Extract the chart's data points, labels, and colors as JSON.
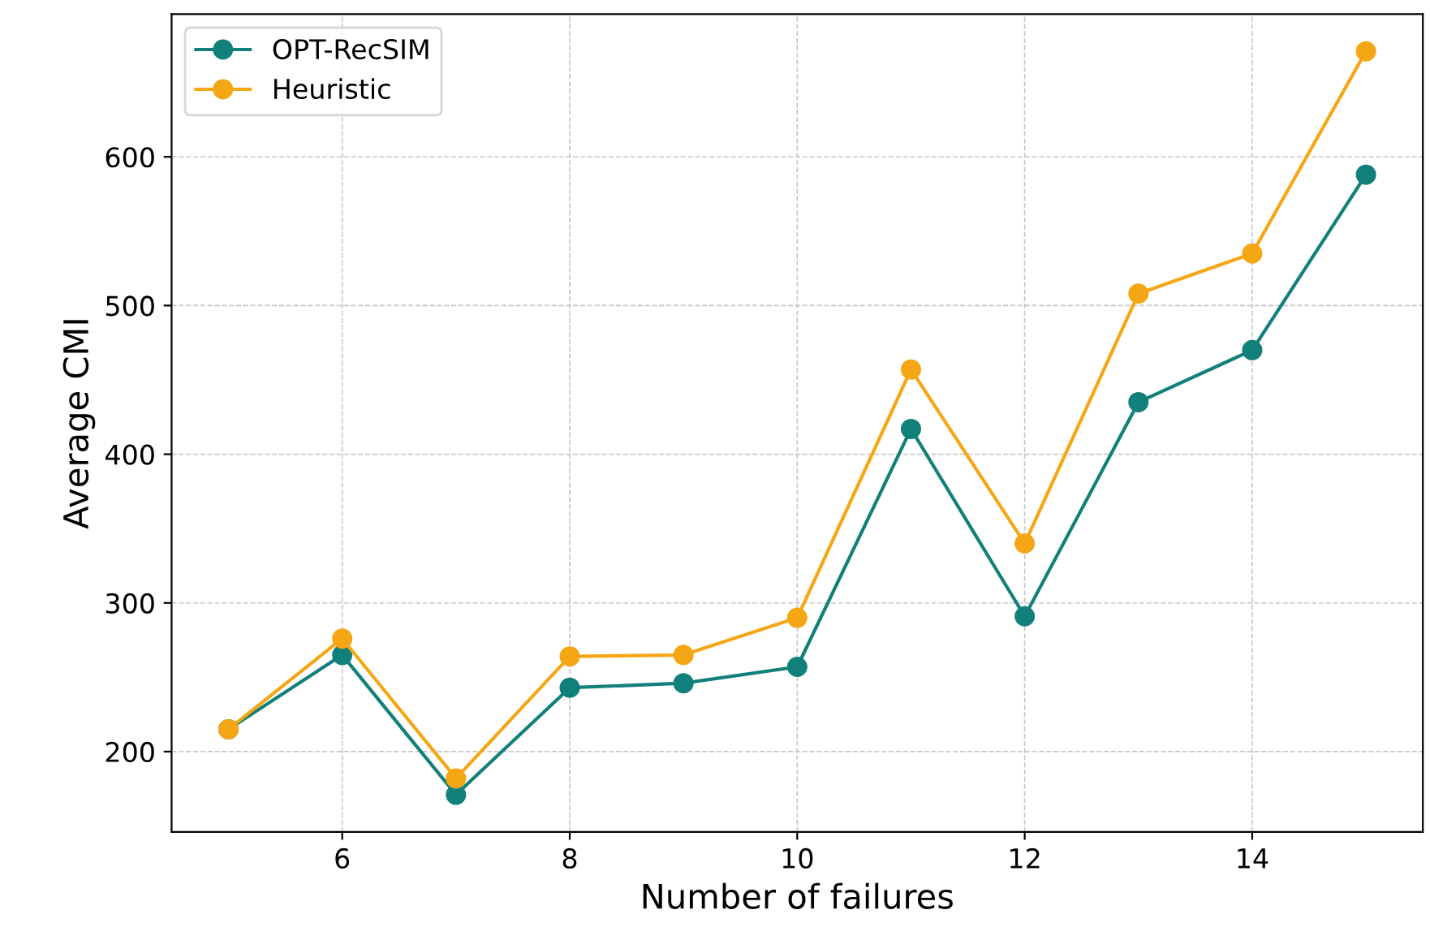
{
  "chart_data": {
    "type": "line",
    "xlabel": "Number of failures",
    "ylabel": "Average CMI",
    "x": [
      5,
      6,
      7,
      8,
      9,
      10,
      11,
      12,
      13,
      14,
      15
    ],
    "series": [
      {
        "name": "OPT-RecSIM",
        "color": "#11807a",
        "values": [
          215,
          265,
          171,
          243,
          246,
          257,
          417,
          291,
          435,
          470,
          588
        ]
      },
      {
        "name": "Heuristic",
        "color": "#f5a614",
        "values": [
          215,
          276,
          182,
          264,
          265,
          290,
          457,
          340,
          508,
          535,
          671
        ]
      }
    ],
    "xlim": [
      4.5,
      15.5
    ],
    "xticks": [
      6,
      8,
      10,
      12,
      14
    ],
    "ylim": [
      146,
      696
    ],
    "yticks": [
      200,
      300,
      400,
      500,
      600
    ],
    "grid": true,
    "legend": "top left",
    "marker": "circle",
    "line_style": "solid"
  }
}
